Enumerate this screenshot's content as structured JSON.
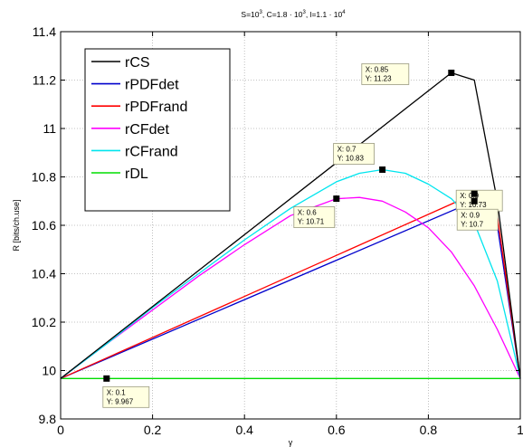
{
  "chart_data": {
    "type": "line",
    "title_parts": {
      "s_base": "S=10",
      "s_exp": "3",
      "c_base": ", C=1.8 · 10",
      "c_exp": "3",
      "l_base": ", l=1.1 · 10",
      "l_exp": "4"
    },
    "xlabel": "γ",
    "ylabel": "R [bits/ch.use]",
    "xlim": [
      0,
      1
    ],
    "ylim": [
      9.8,
      11.4
    ],
    "xticks": [
      0,
      0.2,
      0.4,
      0.6,
      0.8,
      1
    ],
    "xtick_labels": [
      "0",
      "0.2",
      "0.4",
      "0.6",
      "0.8",
      "1"
    ],
    "yticks": [
      9.8,
      10,
      10.2,
      10.4,
      10.6,
      10.8,
      11,
      11.2,
      11.4
    ],
    "ytick_labels": [
      "9.8",
      "10",
      "10.2",
      "10.4",
      "10.6",
      "10.8",
      "11",
      "11.2",
      "11.4"
    ],
    "grid": "on",
    "legend_position": "top-left",
    "series": [
      {
        "name": "rCS",
        "color": "#000000",
        "x": [
          0,
          0.85,
          0.9,
          0.95,
          1
        ],
        "y": [
          9.967,
          11.23,
          11.2,
          10.7,
          9.967
        ]
      },
      {
        "name": "rPDFdet",
        "color": "#0000cc",
        "x": [
          0,
          0.9,
          0.95,
          1
        ],
        "y": [
          9.967,
          10.7,
          10.6,
          9.967
        ]
      },
      {
        "name": "rPDFrand",
        "color": "#ff0000",
        "x": [
          0,
          0.9,
          0.95,
          1
        ],
        "y": [
          9.967,
          10.73,
          10.64,
          9.967
        ]
      },
      {
        "name": "rCFdet",
        "color": "#ff00ff",
        "x": [
          0,
          0.1,
          0.2,
          0.3,
          0.4,
          0.5,
          0.6,
          0.65,
          0.7,
          0.75,
          0.8,
          0.85,
          0.9,
          0.95,
          1
        ],
        "y": [
          9.967,
          10.11,
          10.25,
          10.39,
          10.52,
          10.64,
          10.71,
          10.715,
          10.7,
          10.655,
          10.59,
          10.49,
          10.35,
          10.17,
          9.967
        ]
      },
      {
        "name": "rCFrand",
        "color": "#00e5ee",
        "x": [
          0,
          0.1,
          0.2,
          0.3,
          0.4,
          0.5,
          0.6,
          0.65,
          0.7,
          0.75,
          0.8,
          0.85,
          0.9,
          0.95,
          1
        ],
        "y": [
          9.967,
          10.11,
          10.26,
          10.4,
          10.54,
          10.67,
          10.78,
          10.815,
          10.83,
          10.815,
          10.77,
          10.71,
          10.61,
          10.37,
          9.967
        ]
      },
      {
        "name": "rDL",
        "color": "#00dd00",
        "x": [
          0,
          1
        ],
        "y": [
          9.967,
          9.967
        ]
      }
    ],
    "annotations": [
      {
        "x": 0.85,
        "y": 11.23,
        "line1": "X: 0.85",
        "line2": "Y: 11.23"
      },
      {
        "x": 0.7,
        "y": 10.83,
        "line1": "X: 0.7",
        "line2": "Y: 10.83"
      },
      {
        "x": 0.9,
        "y": 10.73,
        "line1": "X: 0.9",
        "line2": "Y: 10.73"
      },
      {
        "x": 0.6,
        "y": 10.71,
        "line1": "X: 0.6",
        "line2": "Y: 10.71"
      },
      {
        "x": 0.9,
        "y": 10.7,
        "line1": "X: 0.9",
        "line2": "Y: 10.7"
      },
      {
        "x": 0.1,
        "y": 9.967,
        "line1": "X: 0.1",
        "line2": "Y: 9.967"
      }
    ]
  }
}
